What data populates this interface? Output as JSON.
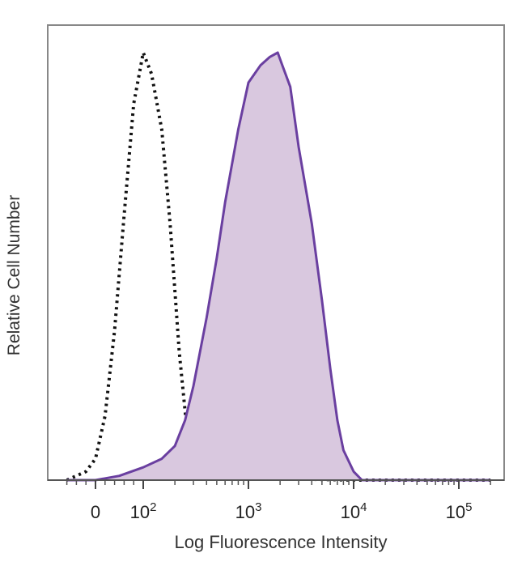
{
  "chart_data": {
    "type": "area",
    "xlabel": "Log Fluorescence Intensity",
    "ylabel": "Relative Cell Number",
    "x_scale": "biexponential",
    "ylim": [
      0,
      1
    ],
    "grid": false,
    "tick_labels": [
      {
        "value": 0,
        "base": "0",
        "exp": ""
      },
      {
        "value": 100,
        "base": "10",
        "exp": "2"
      },
      {
        "value": 1000,
        "base": "10",
        "exp": "3"
      },
      {
        "value": 10000,
        "base": "10",
        "exp": "4"
      },
      {
        "value": 100000,
        "base": "10",
        "exp": "5"
      }
    ],
    "series": [
      {
        "style": "dotted",
        "color": "#111111",
        "fill": "none",
        "x": [
          -60,
          -20,
          0,
          20,
          40,
          60,
          80,
          100,
          120,
          150,
          180,
          220,
          260,
          300,
          400,
          600,
          1000,
          10000,
          200000
        ],
        "y": [
          0,
          0.02,
          0.05,
          0.15,
          0.35,
          0.62,
          0.88,
          1.0,
          0.95,
          0.82,
          0.6,
          0.3,
          0.12,
          0.04,
          0.02,
          0.01,
          0.005,
          0.0,
          0.0
        ]
      },
      {
        "style": "solid",
        "color": "#6a3fa0",
        "fill": "#d9c8df",
        "x": [
          -60,
          0,
          50,
          100,
          150,
          200,
          250,
          300,
          400,
          500,
          600,
          800,
          1000,
          1300,
          1600,
          1900,
          2100,
          2500,
          3000,
          4000,
          5000,
          6000,
          7000,
          8000,
          10000,
          12000,
          200000
        ],
        "y": [
          0,
          0.0,
          0.01,
          0.03,
          0.05,
          0.08,
          0.14,
          0.22,
          0.38,
          0.52,
          0.65,
          0.82,
          0.93,
          0.97,
          0.99,
          1.0,
          0.97,
          0.92,
          0.78,
          0.6,
          0.42,
          0.26,
          0.14,
          0.07,
          0.02,
          0.0,
          0.0
        ]
      }
    ]
  }
}
